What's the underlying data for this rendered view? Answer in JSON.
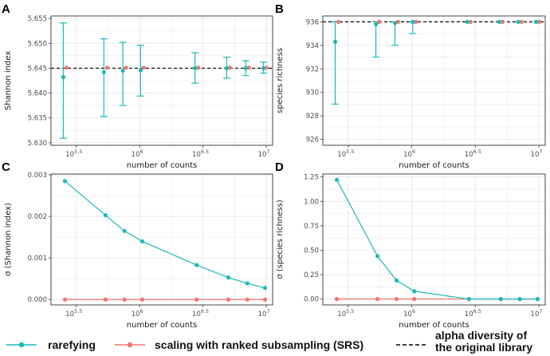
{
  "colors": {
    "rarefying": "#1cb8b8",
    "srs": "#f0766d",
    "reference": "#000000",
    "grid": "#ebebeb",
    "frame": "#333333"
  },
  "legend": {
    "rarefying": "rarefying",
    "srs": "scaling with ranked subsampling (SRS)",
    "reference_line1": "alpha diversity of",
    "reference_line2": "the original library"
  },
  "chart_data": [
    {
      "panel": "A",
      "type": "scatter",
      "xlabel": "number of counts",
      "ylabel": "Shannon index",
      "xscale": "log10",
      "xlim_log10": [
        5.3,
        7.05
      ],
      "xticks": [
        {
          "log": 5.5,
          "base": "10",
          "exp": "5.5"
        },
        {
          "log": 6,
          "base": "10",
          "exp": "6"
        },
        {
          "log": 6.5,
          "base": "10",
          "exp": "6.5"
        },
        {
          "log": 7,
          "base": "10",
          "exp": "7"
        }
      ],
      "ylim": [
        5.6295,
        5.6555
      ],
      "yticks": [
        "5.630",
        "5.635",
        "5.640",
        "5.645",
        "5.650",
        "5.655"
      ],
      "reference": 5.645,
      "x_log10": [
        5.41,
        5.73,
        5.88,
        6.02,
        6.45,
        6.7,
        6.85,
        6.99
      ],
      "series": [
        {
          "name": "rarefying",
          "values": [
            5.6432,
            5.6442,
            5.6445,
            5.6446,
            5.645,
            5.645,
            5.645,
            5.645
          ],
          "low": [
            5.6309,
            5.6353,
            5.6375,
            5.6394,
            5.642,
            5.643,
            5.6435,
            5.644
          ],
          "high": [
            5.6541,
            5.6509,
            5.6502,
            5.6496,
            5.6481,
            5.6472,
            5.6465,
            5.6462
          ]
        },
        {
          "name": "scaling with ranked subsampling (SRS)",
          "values": [
            5.6451,
            5.6451,
            5.6451,
            5.6451,
            5.6451,
            5.6451,
            5.6451,
            5.6451
          ]
        }
      ]
    },
    {
      "panel": "B",
      "type": "scatter",
      "xlabel": "number of counts",
      "ylabel": "species richness",
      "xscale": "log10",
      "xlim_log10": [
        5.3,
        7.05
      ],
      "xticks": [
        {
          "log": 5.5,
          "base": "10",
          "exp": "5.5"
        },
        {
          "log": 6,
          "base": "10",
          "exp": "6"
        },
        {
          "log": 6.5,
          "base": "10",
          "exp": "6.5"
        },
        {
          "log": 7,
          "base": "10",
          "exp": "7"
        }
      ],
      "ylim": [
        925.5,
        936.5
      ],
      "yticks": [
        "926",
        "928",
        "930",
        "932",
        "934",
        "936"
      ],
      "reference": 936,
      "x_log10": [
        5.41,
        5.73,
        5.88,
        6.02,
        6.45,
        6.7,
        6.85,
        6.99
      ],
      "series": [
        {
          "name": "rarefying",
          "values": [
            934.3,
            935.8,
            935.9,
            936.0,
            936.0,
            936.0,
            936.0,
            936.0
          ],
          "low": [
            929.0,
            933.0,
            934.0,
            935.0,
            936.0,
            936.0,
            936.0,
            936.0
          ],
          "high": [
            936.0,
            936.0,
            936.0,
            936.0,
            936.0,
            936.0,
            936.0,
            936.0
          ]
        },
        {
          "name": "scaling with ranked subsampling (SRS)",
          "values": [
            936,
            936,
            936,
            936,
            936,
            936,
            936,
            936
          ]
        }
      ]
    },
    {
      "panel": "C",
      "type": "line",
      "xlabel": "number of counts",
      "ylabel": "σ (Shannon index)",
      "xscale": "log10",
      "xlim_log10": [
        5.3,
        7.05
      ],
      "xticks": [
        {
          "log": 5.5,
          "base": "10",
          "exp": "5.5"
        },
        {
          "log": 6,
          "base": "10",
          "exp": "6"
        },
        {
          "log": 6.5,
          "base": "10",
          "exp": "6.5"
        },
        {
          "log": 7,
          "base": "10",
          "exp": "7"
        }
      ],
      "ylim": [
        -0.00013,
        0.00302
      ],
      "yticks": [
        "0.000",
        "0.001",
        "0.002",
        "0.003"
      ],
      "x_log10": [
        5.41,
        5.73,
        5.88,
        6.02,
        6.45,
        6.7,
        6.85,
        6.99
      ],
      "series": [
        {
          "name": "rarefying",
          "values": [
            0.00285,
            0.00203,
            0.00165,
            0.0014,
            0.00083,
            0.00053,
            0.00039,
            0.00028
          ]
        },
        {
          "name": "scaling with ranked subsampling (SRS)",
          "values": [
            0,
            0,
            0,
            0,
            0,
            0,
            0,
            0
          ]
        }
      ]
    },
    {
      "panel": "D",
      "type": "line",
      "xlabel": "number of counts",
      "ylabel": "σ (species richness)",
      "xscale": "log10",
      "xlim_log10": [
        5.3,
        7.05
      ],
      "xticks": [
        {
          "log": 5.5,
          "base": "10",
          "exp": "5.5"
        },
        {
          "log": 6,
          "base": "10",
          "exp": "6"
        },
        {
          "log": 6.5,
          "base": "10",
          "exp": "6.5"
        },
        {
          "log": 7,
          "base": "10",
          "exp": "7"
        }
      ],
      "ylim": [
        -0.06,
        1.28
      ],
      "yticks": [
        "0.00",
        "0.25",
        "0.50",
        "0.75",
        "1.00",
        "1.25"
      ],
      "x_log10": [
        5.41,
        5.73,
        5.88,
        6.02,
        6.45,
        6.7,
        6.85,
        6.99
      ],
      "series": [
        {
          "name": "rarefying",
          "values": [
            1.22,
            0.44,
            0.19,
            0.08,
            0.0,
            0.0,
            0.0,
            0.0
          ]
        },
        {
          "name": "scaling with ranked subsampling (SRS)",
          "values": [
            0,
            0,
            0,
            0,
            0,
            0,
            0,
            0
          ]
        }
      ]
    }
  ]
}
